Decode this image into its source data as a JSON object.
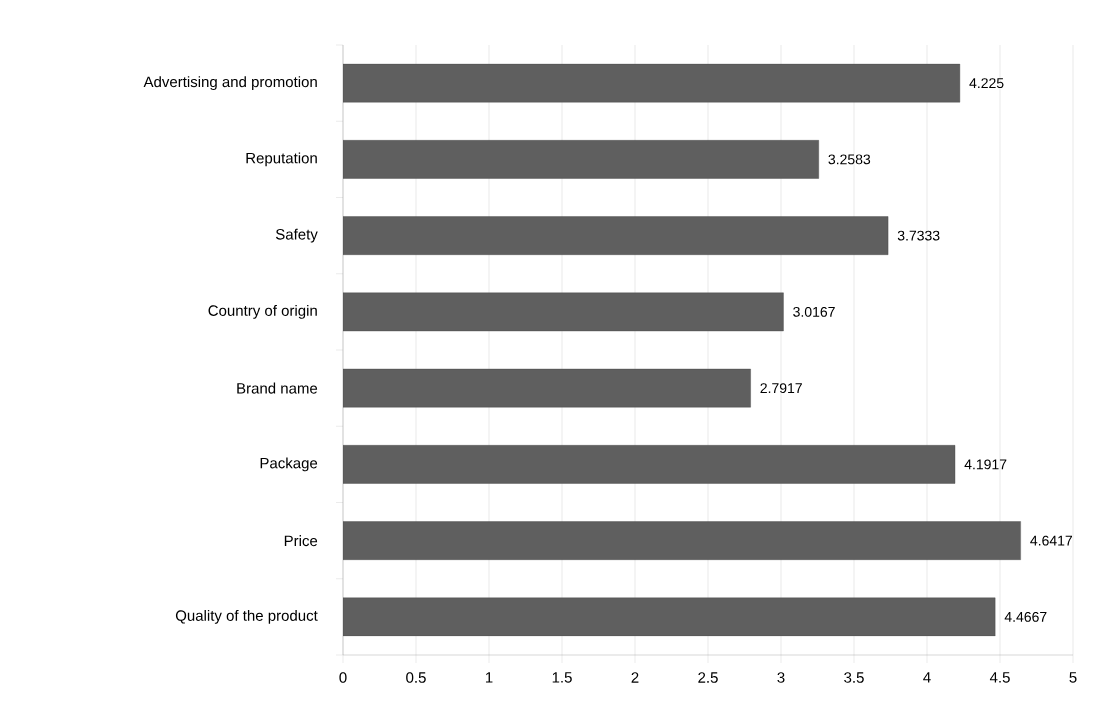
{
  "chart_data": {
    "type": "bar",
    "orientation": "horizontal",
    "categories": [
      "Advertising and promotion",
      "Reputation",
      "Safety",
      "Country of origin",
      "Brand name",
      "Package",
      "Price",
      "Quality of the product"
    ],
    "values": [
      4.225,
      3.2583,
      3.7333,
      3.0167,
      2.7917,
      4.1917,
      4.6417,
      4.4667
    ],
    "color": "#5f5f5f",
    "xlim": [
      0,
      5
    ],
    "xticks": [
      0,
      0.5,
      1,
      1.5,
      2,
      2.5,
      3,
      3.5,
      4,
      4.5,
      5
    ],
    "grid": "x",
    "data_labels": true
  }
}
